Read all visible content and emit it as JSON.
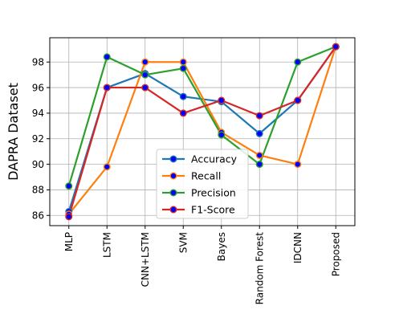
{
  "chart_data": {
    "type": "line",
    "title": "",
    "xlabel": "",
    "ylabel": "DAPRA Dataset",
    "categories": [
      "MLP",
      "LSTM",
      "CNN+LSTM",
      "SVM",
      "Bayes",
      "Random Forest",
      "IDCNN",
      "Proposed"
    ],
    "ylim": [
      85.2,
      99.9
    ],
    "yticks": [
      86,
      88,
      90,
      92,
      94,
      96,
      98
    ],
    "grid": true,
    "legend_position": "lower-center",
    "series": [
      {
        "name": "Accuracy",
        "color": "#1f77b4",
        "values": [
          86.3,
          96.0,
          97.1,
          95.3,
          94.9,
          92.4,
          95.0,
          99.2
        ]
      },
      {
        "name": "Recall",
        "color": "#ff7f0e",
        "values": [
          86.1,
          89.8,
          98.0,
          98.0,
          92.5,
          90.7,
          90.0,
          99.2
        ]
      },
      {
        "name": "Precision",
        "color": "#2ca02c",
        "values": [
          88.3,
          98.4,
          97.0,
          97.5,
          92.3,
          90.0,
          98.0,
          99.2
        ]
      },
      {
        "name": "F1-Score",
        "color": "#d62728",
        "values": [
          85.9,
          96.0,
          96.0,
          94.0,
          95.0,
          93.8,
          95.0,
          99.2
        ]
      }
    ],
    "marker_face_color": "#0000ff"
  }
}
